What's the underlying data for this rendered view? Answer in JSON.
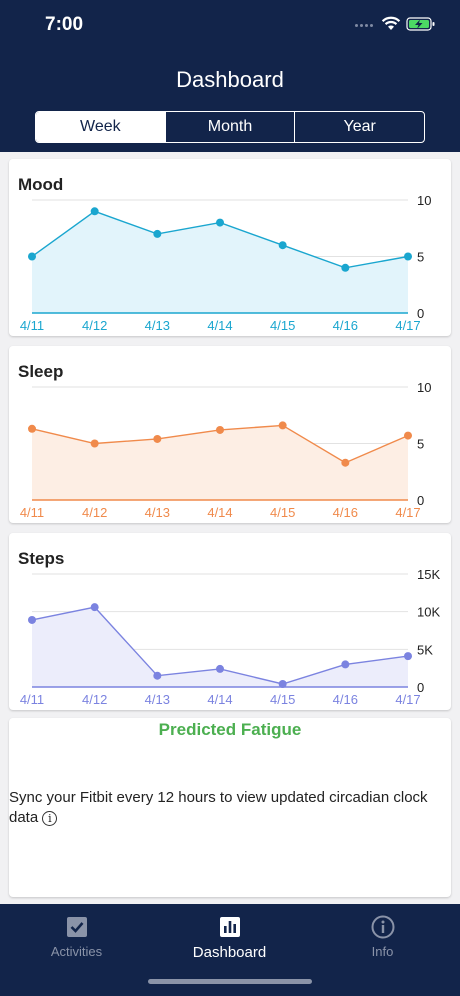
{
  "status": {
    "time": "7:00"
  },
  "header": {
    "title": "Dashboard"
  },
  "tabs": [
    {
      "label": "Week",
      "active": true
    },
    {
      "label": "Month",
      "active": false
    },
    {
      "label": "Year",
      "active": false
    }
  ],
  "chart_data": [
    {
      "type": "area",
      "title": "Mood",
      "color": "#1aa6cf",
      "fill": "#e2f4fb",
      "categories": [
        "4/11",
        "4/12",
        "4/13",
        "4/14",
        "4/15",
        "4/16",
        "4/17"
      ],
      "values": [
        5,
        9,
        7,
        8,
        6,
        4,
        5
      ],
      "ylim": [
        0,
        10
      ],
      "yticks": [
        "0",
        "5",
        "10"
      ],
      "grid": true
    },
    {
      "type": "area",
      "title": "Sleep",
      "color": "#f08a4b",
      "fill": "#fdeee4",
      "categories": [
        "4/11",
        "4/12",
        "4/13",
        "4/14",
        "4/15",
        "4/16",
        "4/17"
      ],
      "values": [
        6.3,
        5.0,
        5.4,
        6.2,
        6.6,
        3.3,
        5.7
      ],
      "ylim": [
        0,
        10
      ],
      "yticks": [
        "0",
        "5",
        "10"
      ],
      "grid": true
    },
    {
      "type": "area",
      "title": "Steps",
      "color": "#7b83e0",
      "fill": "#ecedfb",
      "categories": [
        "4/11",
        "4/12",
        "4/13",
        "4/14",
        "4/15",
        "4/16",
        "4/17"
      ],
      "values": [
        8900,
        10600,
        1500,
        2400,
        400,
        3000,
        4100
      ],
      "ylim": [
        0,
        15000
      ],
      "yticks": [
        "0",
        "5K",
        "10K",
        "15K"
      ],
      "grid": true
    }
  ],
  "fatigue": {
    "title": "Predicted Fatigue",
    "message": "Sync your Fitbit every 12 hours to view updated circadian clock data",
    "info_glyph": "i"
  },
  "tabbar": [
    {
      "label": "Activities",
      "icon": "checkbox-icon",
      "active": false
    },
    {
      "label": "Dashboard",
      "icon": "bar-chart-icon",
      "active": true
    },
    {
      "label": "Info",
      "icon": "info-icon",
      "active": false
    }
  ]
}
